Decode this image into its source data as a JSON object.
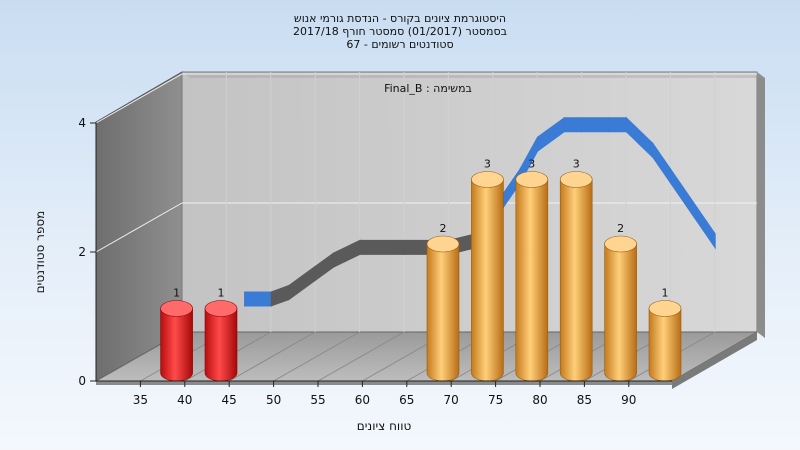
{
  "chart_data": {
    "type": "bar",
    "title_lines": [
      "היסטוגרמת ציונים בקורס - הנדסת גורמי אנוש",
      "בסמסטר  (01/2017)  סמסטר חורף 2017/18",
      "סטודנטים רשומים - 67"
    ],
    "annotation": "Final_B : במשימה",
    "xlabel": "טווח ציונים",
    "ylabel": "מספר סטודנטים",
    "x_ticks": [
      "35",
      "40",
      "45",
      "50",
      "55",
      "60",
      "65",
      "70",
      "75",
      "80",
      "85",
      "90"
    ],
    "y_ticks": [
      "0",
      "2",
      "4"
    ],
    "ylim": [
      0,
      4
    ],
    "categories": [
      "40",
      "45",
      "70",
      "75",
      "80",
      "85",
      "90",
      "95"
    ],
    "values": [
      1,
      1,
      2,
      3,
      3,
      3,
      2,
      1
    ],
    "data_labels": [
      "1",
      "1",
      "2",
      "3",
      "3",
      "3",
      "2",
      "1"
    ],
    "bar_colors": [
      "#e32020",
      "#e32020",
      "#e8a23c",
      "#e8a23c",
      "#e8a23c",
      "#e8a23c",
      "#e8a23c",
      "#e8a23c"
    ],
    "curve": {
      "x": [
        42,
        45,
        47,
        50,
        52,
        55,
        60,
        65,
        68,
        70,
        73,
        75,
        78,
        80,
        83,
        85,
        88,
        90,
        95
      ],
      "y": [
        0.9,
        0.9,
        1.0,
        1.3,
        1.5,
        1.7,
        1.7,
        1.7,
        1.8,
        2.2,
        2.8,
        3.3,
        3.6,
        3.6,
        3.6,
        3.6,
        3.2,
        2.8,
        1.8
      ],
      "colors": {
        "low": "#3a7bd5",
        "mid": "#5a5a5a",
        "high": "#3a7bd5"
      }
    },
    "grid": true,
    "legend": "none"
  }
}
